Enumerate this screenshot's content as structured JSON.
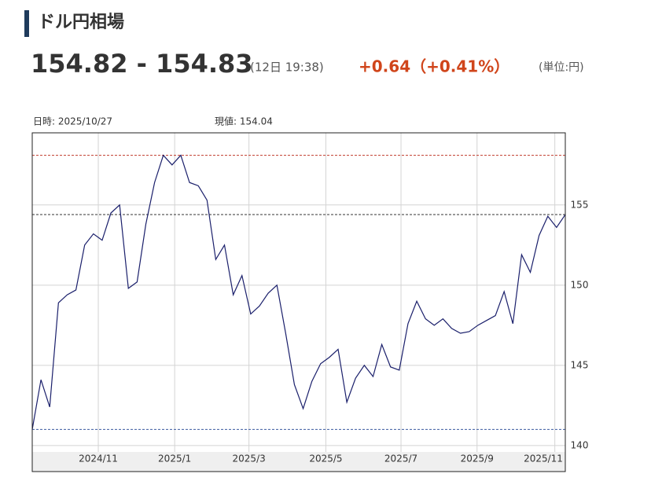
{
  "header": {
    "title": "ドル円相場",
    "price": "154.82 - 154.83",
    "time": "(12日 19:38)",
    "change": "+0.64（+0.41%）",
    "unit": "(単位:円)"
  },
  "chart_data": {
    "type": "line",
    "info": {
      "date": "日時: 2025/10/27",
      "current": "現値: 154.04"
    },
    "color": "#1a1f6b",
    "values": [
      141.0,
      144.1,
      142.4,
      148.9,
      149.4,
      149.7,
      152.5,
      153.2,
      152.8,
      154.5,
      155.0,
      149.8,
      150.2,
      153.8,
      156.4,
      158.1,
      157.5,
      158.1,
      156.4,
      156.2,
      155.3,
      151.6,
      152.5,
      149.4,
      150.6,
      148.2,
      148.7,
      149.5,
      150.0,
      147.0,
      143.8,
      142.3,
      144.0,
      145.1,
      145.5,
      146.0,
      142.7,
      144.2,
      145.0,
      144.3,
      146.3,
      144.9,
      144.7,
      147.6,
      149.0,
      147.9,
      147.5,
      147.9,
      147.3,
      147.0,
      147.1,
      147.5,
      147.8,
      148.1,
      149.6,
      147.6,
      151.9,
      150.8,
      153.1,
      154.3,
      153.6,
      154.4
    ],
    "xlim": [
      0,
      61
    ],
    "xticks": [
      {
        "value": 7.56,
        "label": "2024/11"
      },
      {
        "value": 16.3,
        "label": "2025/1"
      },
      {
        "value": 24.8,
        "label": "2025/3"
      },
      {
        "value": 33.6,
        "label": "2025/5"
      },
      {
        "value": 42.2,
        "label": "2025/7"
      },
      {
        "value": 50.9,
        "label": "2025/9"
      },
      {
        "value": 59.8,
        "label": "2025/11"
      }
    ],
    "ylim": [
      139.6,
      159.5
    ],
    "yticks": [
      140,
      145,
      150,
      155
    ],
    "grid": true,
    "hlines": [
      {
        "value": 158.1,
        "color": "#c0392b"
      },
      {
        "value": 141.0,
        "color": "#3b5aa0"
      },
      {
        "value": 154.4,
        "color": "#333333"
      }
    ]
  }
}
